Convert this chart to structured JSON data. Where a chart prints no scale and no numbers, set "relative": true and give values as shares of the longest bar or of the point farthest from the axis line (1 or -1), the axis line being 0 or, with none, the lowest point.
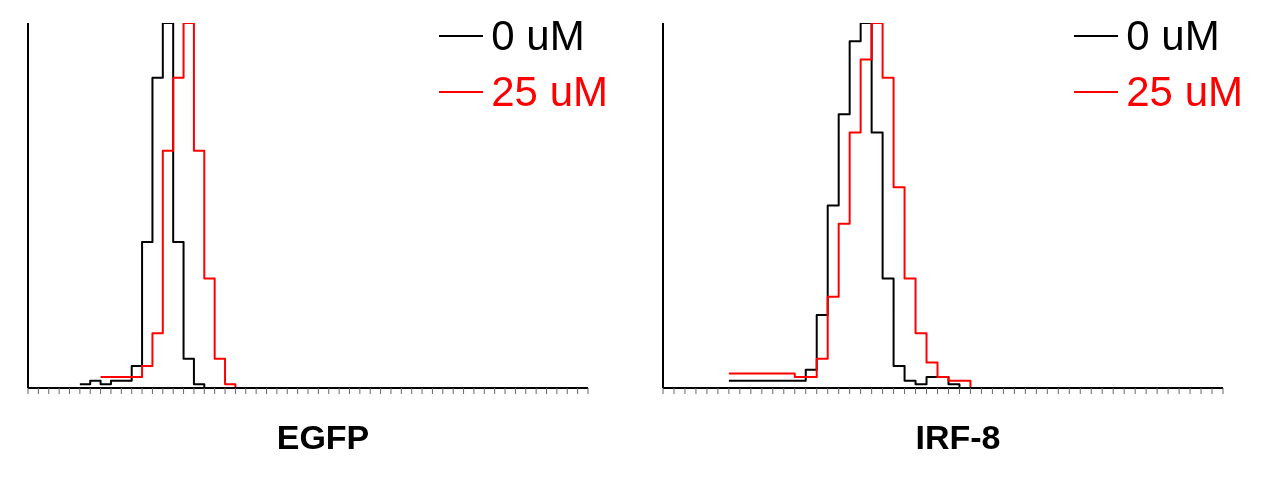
{
  "chart_data": [
    {
      "type": "step",
      "xlabel": "EGFP",
      "relative": true,
      "grid": false,
      "legend": "top right",
      "marker": "none",
      "line_style": "solid",
      "categories": [
        null,
        null,
        null,
        null,
        null,
        null,
        null,
        null,
        null,
        null,
        null,
        null,
        null,
        null,
        null,
        null,
        null,
        null,
        null,
        null,
        null,
        null,
        null,
        null,
        null,
        null,
        null,
        null,
        null,
        null,
        null,
        null,
        null,
        null,
        null,
        null,
        null,
        null,
        null,
        null,
        null,
        null,
        null,
        null,
        null,
        null,
        null,
        null,
        null,
        null,
        null,
        null,
        null,
        null,
        null
      ],
      "series": [
        {
          "name": "0 uM",
          "color": "#000000",
          "values": [
            null,
            null,
            null,
            null,
            null,
            0.01,
            0.02,
            0.01,
            0.02,
            0.02,
            0.06,
            0.4,
            0.85,
            1.0,
            0.4,
            0.08,
            0.01,
            0,
            null,
            null,
            null,
            null,
            null,
            null,
            null,
            null,
            null,
            null,
            null,
            null,
            null,
            null,
            null,
            null,
            null,
            null,
            null,
            null,
            null,
            null,
            null,
            null,
            null,
            null,
            null,
            null,
            null,
            null,
            null,
            null,
            null,
            null,
            null,
            null,
            null
          ]
        },
        {
          "name": "25 uM",
          "color": "#ff0000",
          "values": [
            null,
            null,
            null,
            null,
            null,
            null,
            null,
            0.03,
            0.03,
            0.03,
            0.03,
            0.06,
            0.15,
            0.65,
            0.85,
            1.0,
            0.65,
            0.3,
            0.08,
            0.01,
            0,
            null,
            null,
            null,
            null,
            null,
            null,
            null,
            null,
            null,
            null,
            null,
            null,
            null,
            null,
            null,
            null,
            null,
            null,
            null,
            null,
            null,
            null,
            null,
            null,
            null,
            null,
            null,
            null,
            null,
            null,
            null,
            null,
            null,
            null
          ]
        }
      ]
    },
    {
      "type": "step",
      "xlabel": "IRF-8",
      "relative": true,
      "grid": false,
      "legend": "top right",
      "marker": "none",
      "line_style": "solid",
      "categories": [
        null,
        null,
        null,
        null,
        null,
        null,
        null,
        null,
        null,
        null,
        null,
        null,
        null,
        null,
        null,
        null,
        null,
        null,
        null,
        null,
        null,
        null,
        null,
        null,
        null,
        null,
        null,
        null,
        null,
        null,
        null,
        null,
        null,
        null,
        null,
        null,
        null,
        null,
        null,
        null,
        null,
        null,
        null,
        null,
        null,
        null,
        null,
        null,
        null,
        null,
        null,
        null
      ],
      "series": [
        {
          "name": "0 uM",
          "color": "#000000",
          "values": [
            null,
            null,
            null,
            null,
            null,
            null,
            0.02,
            0.02,
            0.02,
            0.02,
            0.02,
            0.02,
            0.02,
            0.05,
            0.2,
            0.5,
            0.75,
            0.95,
            1.0,
            0.7,
            0.3,
            0.06,
            0.02,
            0.01,
            0.03,
            0.03,
            0.01,
            0,
            null,
            null,
            null,
            null,
            null,
            null,
            null,
            null,
            null,
            null,
            null,
            null,
            null,
            null,
            null,
            null,
            null,
            null,
            null,
            null,
            null,
            null,
            null,
            null
          ]
        },
        {
          "name": "25 uM",
          "color": "#ff0000",
          "values": [
            null,
            null,
            null,
            null,
            null,
            null,
            0.04,
            0.04,
            0.04,
            0.04,
            0.04,
            0.04,
            0.03,
            0.03,
            0.08,
            0.25,
            0.45,
            0.7,
            0.9,
            1.0,
            0.85,
            0.55,
            0.3,
            0.15,
            0.07,
            0.03,
            0.02,
            0.02,
            0,
            null,
            null,
            null,
            null,
            null,
            null,
            null,
            null,
            null,
            null,
            null,
            null,
            null,
            null,
            null,
            null,
            null,
            null,
            null,
            null,
            null,
            null,
            null
          ]
        }
      ]
    }
  ]
}
